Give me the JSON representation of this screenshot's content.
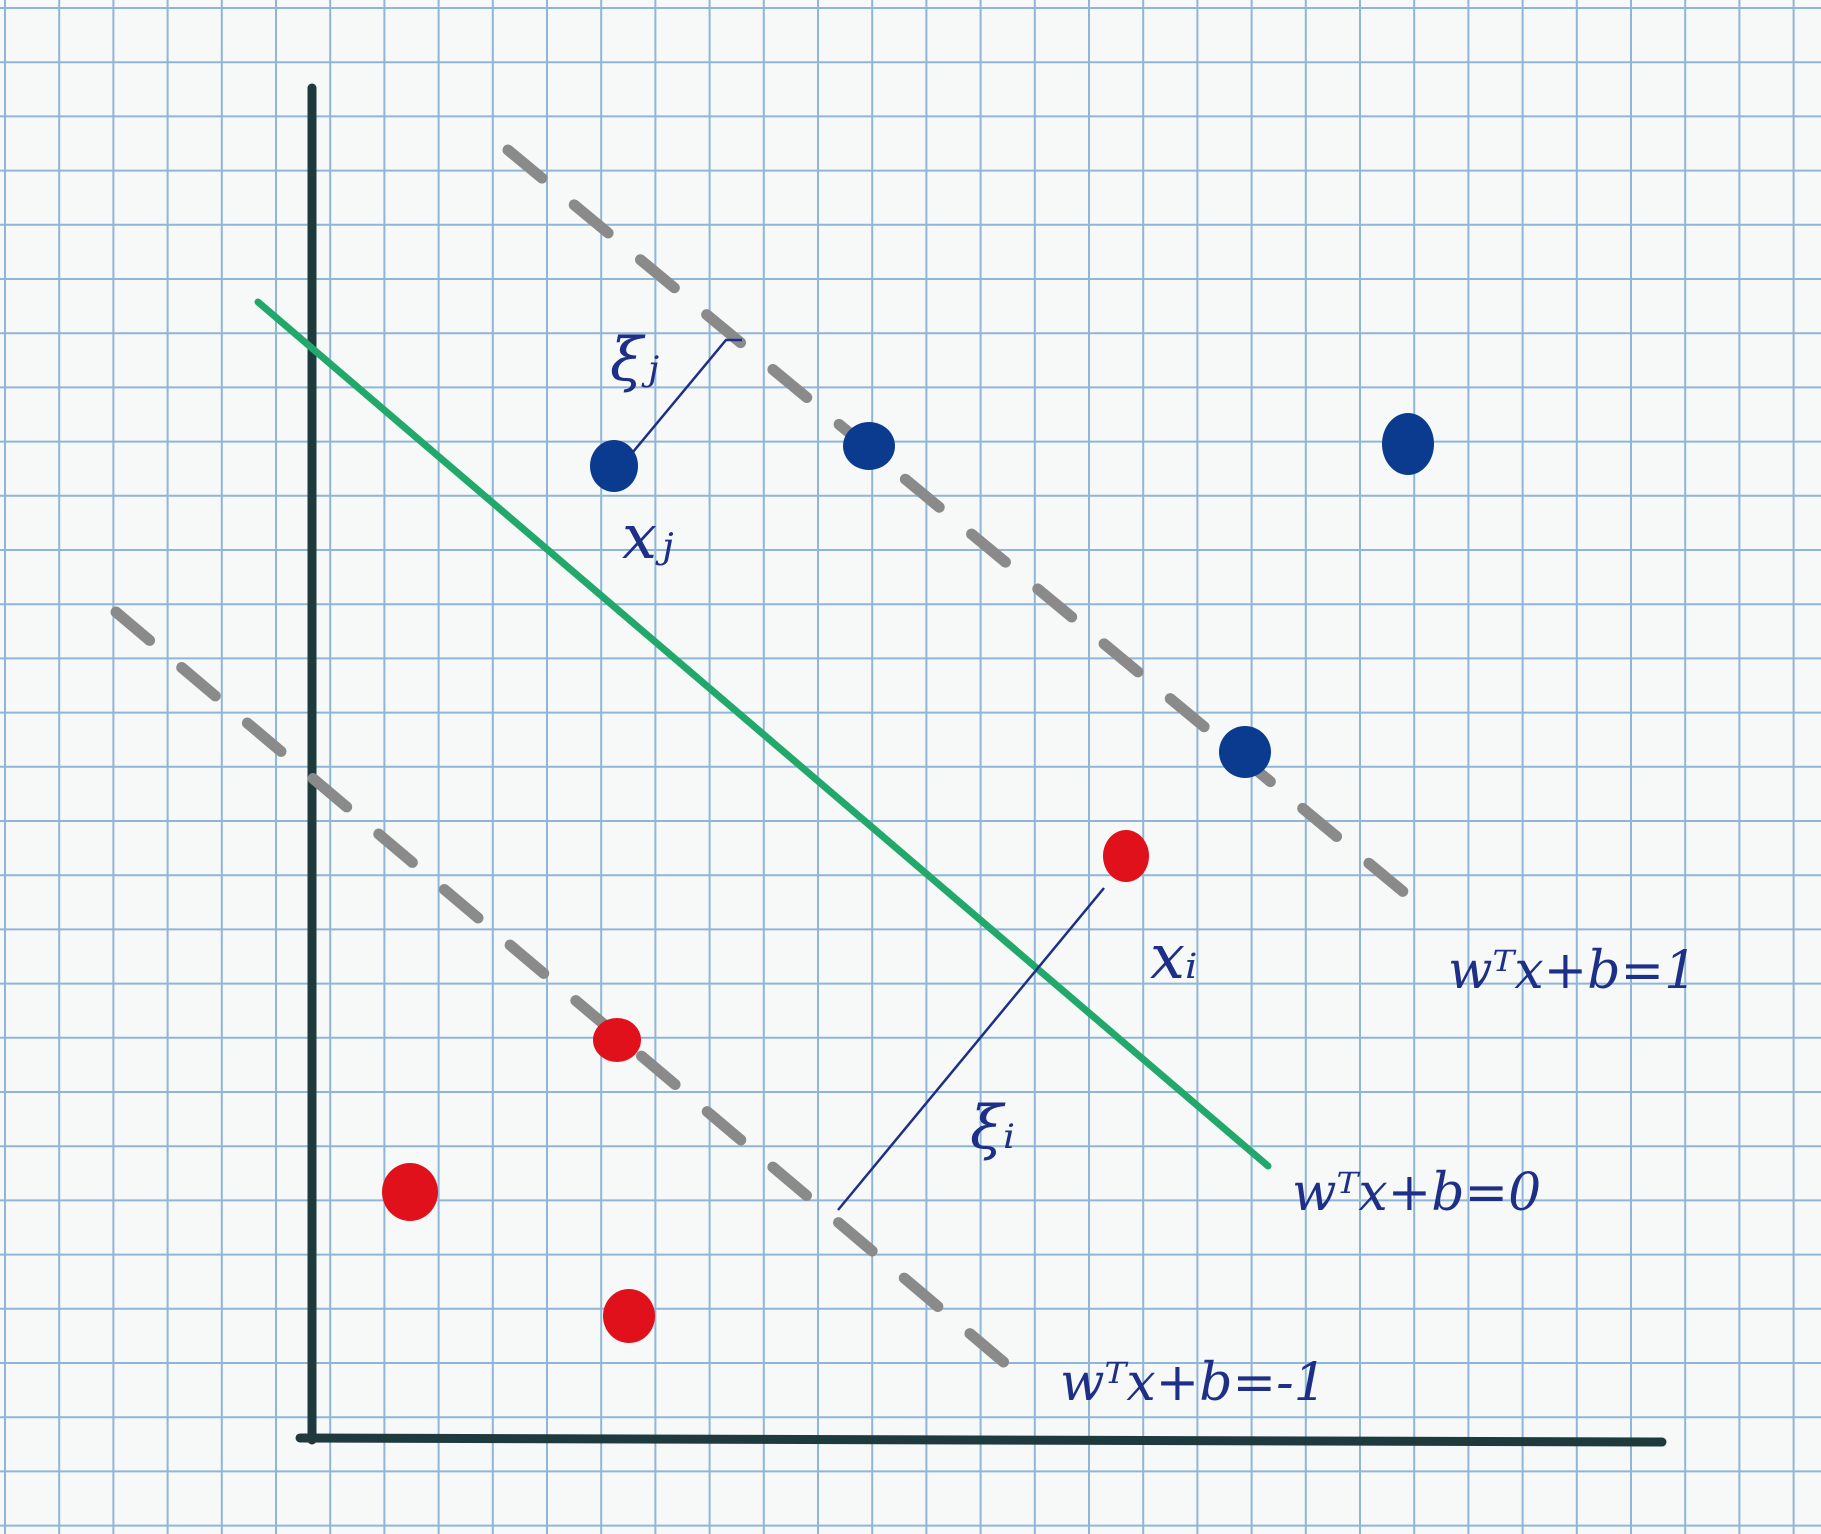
{
  "figure": {
    "colors": {
      "paper": "#f7f9f8",
      "grid": "#8fb6d8",
      "axis": "#1f3a3d",
      "hyperplane": "#22a86a",
      "margin": "#8a8a8a",
      "slack": "#1d2f86",
      "positive": "#0a3b8f",
      "negative": "#e0111b"
    },
    "labels": {
      "xj": "xⱼ",
      "xi": "xᵢ",
      "xi_j": "ξⱼ",
      "xi_i": "ξᵢ",
      "plane_plus": "wᵀx+b=1",
      "plane_zero": "wᵀx+b=0",
      "plane_minus": "wᵀx+b=-1"
    }
  }
}
